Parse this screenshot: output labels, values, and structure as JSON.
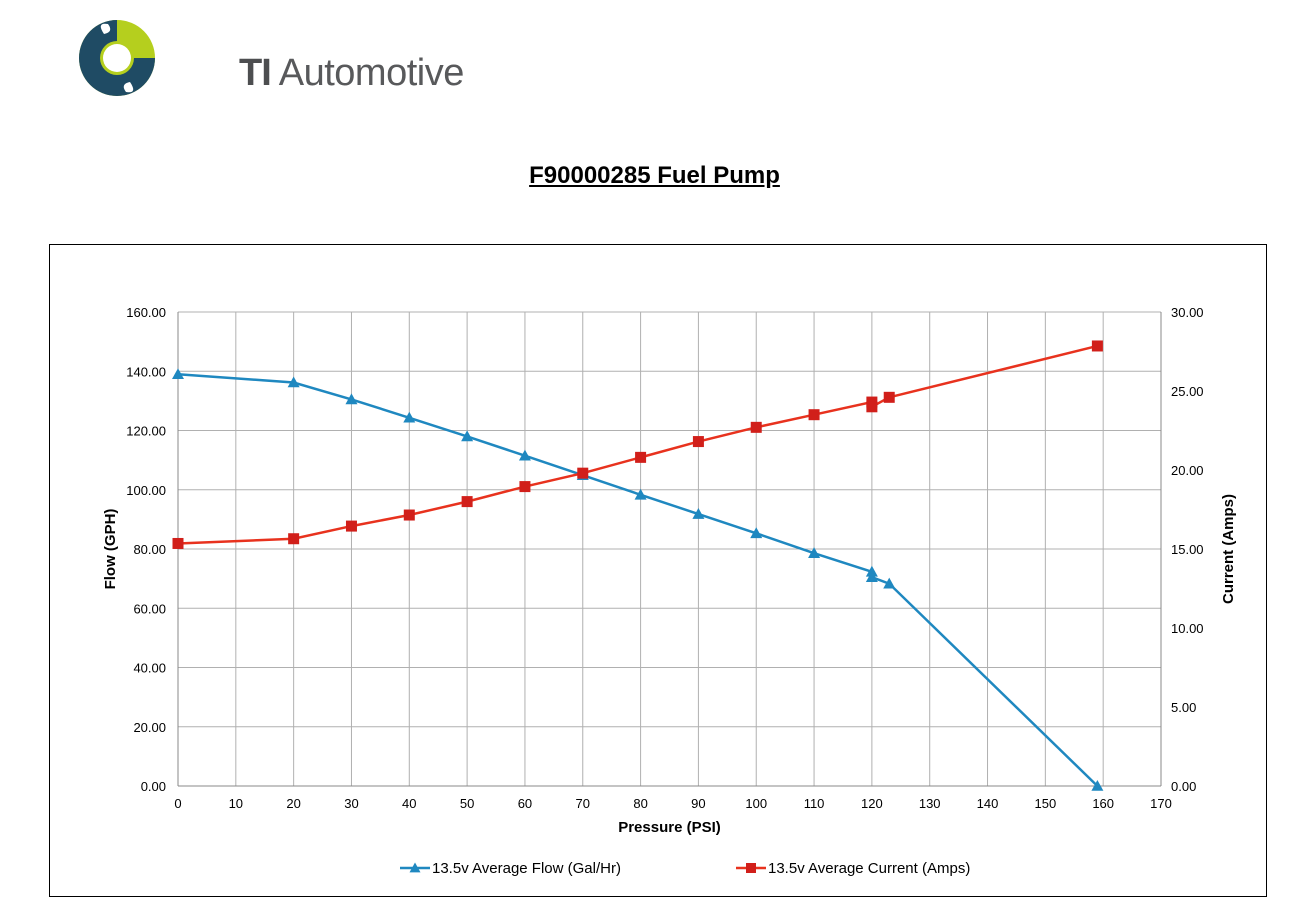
{
  "header": {
    "brand_mark": "TI",
    "brand_name": "Automotive",
    "title": "F90000285 Fuel Pump"
  },
  "colors": {
    "flow": "#1f88c0",
    "current": "#e8321e",
    "current_marker": "#d11f1a",
    "grid": "#b0b0b0",
    "logo_dark": "#1f4b64",
    "logo_green": "#b5cf1e"
  },
  "chart_data": {
    "type": "line",
    "title": "",
    "xlabel": "Pressure (PSI)",
    "ylabel": "Flow (GPH)",
    "y2label": "Current (Amps)",
    "xlim": [
      0,
      170
    ],
    "ylim": [
      0,
      160
    ],
    "y2lim": [
      0,
      30
    ],
    "x_ticks": [
      "0",
      "10",
      "20",
      "30",
      "40",
      "50",
      "60",
      "70",
      "80",
      "90",
      "100",
      "110",
      "120",
      "130",
      "140",
      "150",
      "160",
      "170"
    ],
    "y_ticks": [
      "0.00",
      "20.00",
      "40.00",
      "60.00",
      "80.00",
      "100.00",
      "120.00",
      "140.00",
      "160.00"
    ],
    "y2_ticks": [
      "0.00",
      "5.00",
      "10.00",
      "15.00",
      "20.00",
      "25.00",
      "30.00"
    ],
    "grid": true,
    "legend_position": "bottom",
    "series": [
      {
        "name": "13.5v Average Flow (Gal/Hr)",
        "axis": "left",
        "marker": "triangle",
        "x": [
          0,
          20,
          30,
          40,
          50,
          60,
          70,
          80,
          90,
          100,
          110,
          120,
          120,
          123,
          159
        ],
        "y": [
          139.0,
          136.2,
          130.5,
          124.3,
          118.0,
          111.5,
          104.9,
          98.3,
          91.8,
          85.3,
          78.6,
          72.3,
          70.5,
          68.3,
          0.0
        ]
      },
      {
        "name": "13.5v Average Current (Amps)",
        "axis": "right",
        "marker": "square",
        "x": [
          0,
          20,
          30,
          40,
          50,
          60,
          70,
          80,
          90,
          100,
          110,
          120,
          120,
          123,
          159
        ],
        "y": [
          15.35,
          15.65,
          16.45,
          17.15,
          18.0,
          18.95,
          19.8,
          20.8,
          21.8,
          22.7,
          23.5,
          24.3,
          24.0,
          24.6,
          27.85
        ]
      }
    ]
  }
}
